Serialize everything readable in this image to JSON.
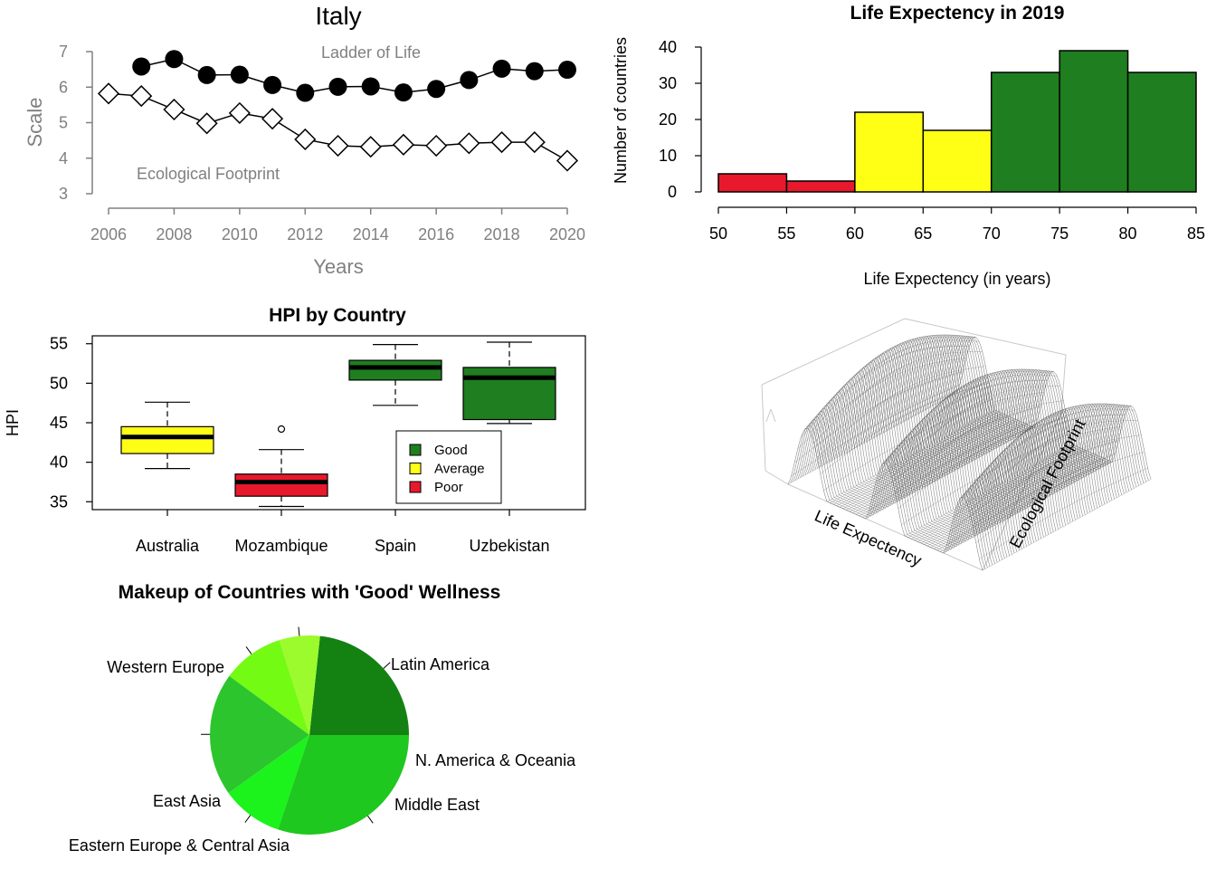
{
  "chart_data": [
    {
      "type": "line",
      "title": "Italy",
      "xlabel": "Years",
      "ylabel": "Scale",
      "xlim": [
        2006,
        2020
      ],
      "ylim": [
        3,
        7
      ],
      "x_ticks": [
        "2006",
        "2008",
        "2010",
        "2012",
        "2014",
        "2016",
        "2018",
        "2020"
      ],
      "y_ticks": [
        "3",
        "4",
        "5",
        "6",
        "7"
      ],
      "grid": false,
      "annotations": [
        "Ladder of Life",
        "Ecological Footprint"
      ],
      "series": [
        {
          "name": "Ladder of Life",
          "marker": "filled-circle",
          "x": [
            2007,
            2008,
            2009,
            2010,
            2011,
            2012,
            2013,
            2014,
            2015,
            2016,
            2017,
            2018,
            2019,
            2020
          ],
          "values": [
            6.58,
            6.79,
            6.34,
            6.35,
            6.06,
            5.84,
            6.01,
            6.02,
            5.85,
            5.95,
            6.2,
            6.52,
            6.45,
            6.49
          ]
        },
        {
          "name": "Ecological Footprint",
          "marker": "open-diamond",
          "x": [
            2006,
            2007,
            2008,
            2009,
            2010,
            2011,
            2012,
            2013,
            2014,
            2015,
            2016,
            2017,
            2018,
            2019,
            2020
          ],
          "values": [
            5.82,
            5.75,
            5.37,
            4.98,
            5.27,
            5.11,
            4.53,
            4.35,
            4.32,
            4.38,
            4.35,
            4.42,
            4.45,
            4.45,
            3.93
          ]
        }
      ]
    },
    {
      "type": "bar",
      "title": "Life Expectency in 2019",
      "xlabel": "Life Expectency (in years)",
      "ylabel": "Number of countries",
      "xlim": [
        50,
        85
      ],
      "ylim": [
        0,
        40
      ],
      "x_ticks": [
        "50",
        "55",
        "60",
        "65",
        "70",
        "75",
        "80",
        "85"
      ],
      "y_ticks": [
        "0",
        "10",
        "20",
        "30",
        "40"
      ],
      "bins": [
        [
          50,
          55
        ],
        [
          55,
          60
        ],
        [
          60,
          65
        ],
        [
          65,
          70
        ],
        [
          70,
          75
        ],
        [
          75,
          80
        ],
        [
          80,
          85
        ]
      ],
      "values": [
        5,
        3,
        22,
        17,
        33,
        39,
        33
      ],
      "colors": [
        "#e8192c",
        "#e8192c",
        "#ffff16",
        "#ffff16",
        "#1f7e1f",
        "#1f7e1f",
        "#1f7e1f"
      ]
    },
    {
      "type": "box",
      "title": "HPI by Country",
      "ylabel": "HPI",
      "ylim": [
        34,
        56
      ],
      "y_ticks": [
        "35",
        "40",
        "45",
        "50",
        "55"
      ],
      "categories": [
        "Australia",
        "Mozambique",
        "Spain",
        "Uzbekistan"
      ],
      "boxes": [
        {
          "min": 39.2,
          "q1": 41.1,
          "median": 43.2,
          "q3": 44.5,
          "max": 47.6,
          "outliers": [],
          "group": "Average"
        },
        {
          "min": 34.4,
          "q1": 35.7,
          "median": 37.5,
          "q3": 38.5,
          "max": 41.6,
          "outliers": [
            44.2
          ],
          "group": "Poor"
        },
        {
          "min": 47.2,
          "q1": 50.4,
          "median": 52.0,
          "q3": 52.9,
          "max": 54.9,
          "outliers": [],
          "group": "Good"
        },
        {
          "min": 44.9,
          "q1": 45.4,
          "median": 50.7,
          "q3": 52.0,
          "max": 55.2,
          "outliers": [],
          "group": "Good"
        }
      ],
      "legend": {
        "position": "bottom-right",
        "entries": [
          {
            "label": "Good",
            "color": "#1f7e1f"
          },
          {
            "label": "Average",
            "color": "#ffff16"
          },
          {
            "label": "Poor",
            "color": "#e8192c"
          }
        ]
      }
    },
    {
      "type": "surface",
      "x_label": "Life Expectency",
      "y_label": "Ecological Footprint",
      "wave_count": 5,
      "line_color": "#444444"
    },
    {
      "type": "pie",
      "title": "Makeup of Countries with 'Good' Wellness",
      "slices": [
        {
          "label": "Latin America",
          "value": 23.3,
          "color": "#138213"
        },
        {
          "label": "N. America & Oceania",
          "value": 6.6,
          "color": "#9cfb2c"
        },
        {
          "label": "Middle East",
          "value": 10.0,
          "color": "#74fb14"
        },
        {
          "label": "Eastern Europe & Central Asia",
          "value": 20.0,
          "color": "#2dc52d"
        },
        {
          "label": "East Asia",
          "value": 10.0,
          "color": "#1cf21c"
        },
        {
          "label": "Western Europe",
          "value": 30.1,
          "color": "#1ec81e"
        }
      ]
    }
  ]
}
